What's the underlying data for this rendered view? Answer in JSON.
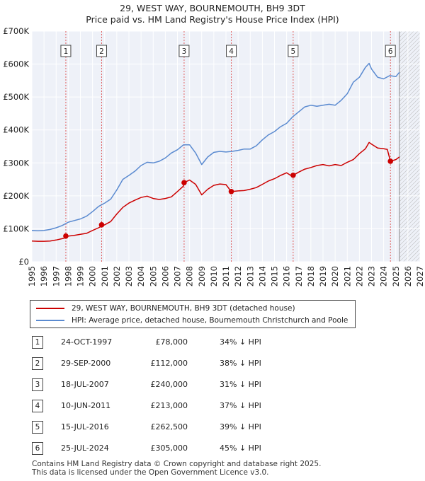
{
  "chart_data": {
    "type": "line",
    "title": "29, WEST WAY, BOURNEMOUTH, BH9 3DT",
    "subtitle": "Price paid vs. HM Land Registry's House Price Index (HPI)",
    "xlabel": "",
    "ylabel": "",
    "xlim": [
      1995,
      2027
    ],
    "ylim": [
      0,
      700000
    ],
    "grid": true,
    "x_ticks": [
      "1995",
      "1996",
      "1997",
      "1998",
      "1999",
      "2000",
      "2001",
      "2002",
      "2003",
      "2004",
      "2005",
      "2006",
      "2007",
      "2008",
      "2009",
      "2010",
      "2011",
      "2012",
      "2013",
      "2014",
      "2015",
      "2016",
      "2017",
      "2018",
      "2019",
      "2020",
      "2021",
      "2022",
      "2023",
      "2024",
      "2025",
      "2026",
      "2027"
    ],
    "y_ticks": [
      {
        "value": 0,
        "label": "£0"
      },
      {
        "value": 100000,
        "label": "£100K"
      },
      {
        "value": 200000,
        "label": "£200K"
      },
      {
        "value": 300000,
        "label": "£300K"
      },
      {
        "value": 400000,
        "label": "£400K"
      },
      {
        "value": 500000,
        "label": "£500K"
      },
      {
        "value": 600000,
        "label": "£600K"
      },
      {
        "value": 700000,
        "label": "£700K"
      }
    ],
    "future_start": 2025.3,
    "series": [
      {
        "name": "29, WEST WAY, BOURNEMOUTH, BH9 3DT (detached house)",
        "color": "#cc0000",
        "x": [
          1995.0,
          1995.5,
          1996.0,
          1996.5,
          1997.0,
          1997.5,
          1997.8,
          1998.0,
          1998.5,
          1999.0,
          1999.5,
          2000.0,
          2000.5,
          2000.75,
          2001.0,
          2001.5,
          2002.0,
          2002.5,
          2003.0,
          2003.5,
          2004.0,
          2004.5,
          2005.0,
          2005.5,
          2006.0,
          2006.5,
          2007.0,
          2007.5,
          2007.55,
          2008.0,
          2008.5,
          2009.0,
          2009.5,
          2010.0,
          2010.5,
          2011.0,
          2011.44,
          2011.5,
          2012.0,
          2012.5,
          2013.0,
          2013.5,
          2014.0,
          2014.5,
          2015.0,
          2015.5,
          2016.0,
          2016.5,
          2016.54,
          2017.0,
          2017.5,
          2018.0,
          2018.5,
          2019.0,
          2019.5,
          2020.0,
          2020.5,
          2021.0,
          2021.5,
          2022.0,
          2022.5,
          2022.8,
          2023.0,
          2023.5,
          2024.0,
          2024.3,
          2024.56,
          2025.0,
          2025.3
        ],
        "y": [
          63000,
          62000,
          62000,
          63000,
          66000,
          70000,
          73000,
          78000,
          80000,
          83000,
          86000,
          95000,
          103000,
          108000,
          112000,
          122000,
          145000,
          165000,
          178000,
          187000,
          195000,
          199000,
          192000,
          189000,
          192000,
          197000,
          213000,
          230000,
          240000,
          248000,
          235000,
          203000,
          220000,
          232000,
          236000,
          234000,
          213000,
          213000,
          215000,
          216000,
          220000,
          225000,
          235000,
          245000,
          252000,
          262000,
          270000,
          258000,
          262500,
          272000,
          281000,
          286000,
          292000,
          295000,
          291000,
          295000,
          292000,
          302000,
          310000,
          328000,
          343000,
          362000,
          357000,
          345000,
          343000,
          341000,
          305000,
          310000,
          318000
        ]
      },
      {
        "name": "HPI: Average price, detached house, Bournemouth Christchurch and Poole",
        "color": "#5a8ad0",
        "x": [
          1995.0,
          1995.5,
          1996.0,
          1996.5,
          1997.0,
          1997.5,
          1998.0,
          1998.5,
          1999.0,
          1999.5,
          2000.0,
          2000.5,
          2001.0,
          2001.5,
          2002.0,
          2002.5,
          2003.0,
          2003.5,
          2004.0,
          2004.5,
          2005.0,
          2005.5,
          2006.0,
          2006.5,
          2007.0,
          2007.5,
          2008.0,
          2008.5,
          2009.0,
          2009.5,
          2010.0,
          2010.5,
          2011.0,
          2011.5,
          2012.0,
          2012.5,
          2013.0,
          2013.5,
          2014.0,
          2014.5,
          2015.0,
          2015.5,
          2016.0,
          2016.5,
          2017.0,
          2017.5,
          2018.0,
          2018.5,
          2019.0,
          2019.5,
          2020.0,
          2020.5,
          2021.0,
          2021.5,
          2022.0,
          2022.5,
          2022.8,
          2023.0,
          2023.5,
          2024.0,
          2024.5,
          2025.0,
          2025.3
        ],
        "y": [
          95000,
          94000,
          95000,
          98000,
          103000,
          110000,
          120000,
          125000,
          130000,
          138000,
          152000,
          168000,
          178000,
          190000,
          218000,
          250000,
          262000,
          275000,
          292000,
          302000,
          300000,
          305000,
          315000,
          330000,
          340000,
          355000,
          355000,
          330000,
          295000,
          318000,
          332000,
          335000,
          333000,
          335000,
          338000,
          342000,
          342000,
          352000,
          370000,
          385000,
          395000,
          410000,
          420000,
          440000,
          455000,
          470000,
          475000,
          472000,
          475000,
          478000,
          475000,
          490000,
          510000,
          545000,
          560000,
          590000,
          602000,
          585000,
          560000,
          555000,
          565000,
          562000,
          575000
        ]
      }
    ],
    "markers": [
      {
        "label": "1",
        "x": 1997.8,
        "y": 78000
      },
      {
        "label": "2",
        "x": 2000.75,
        "y": 112000
      },
      {
        "label": "3",
        "x": 2007.55,
        "y": 240000
      },
      {
        "label": "4",
        "x": 2011.44,
        "y": 213000
      },
      {
        "label": "5",
        "x": 2016.54,
        "y": 262500
      },
      {
        "label": "6",
        "x": 2024.56,
        "y": 305000
      }
    ]
  },
  "legend": [
    {
      "label": "29, WEST WAY, BOURNEMOUTH, BH9 3DT (detached house)",
      "color": "#cc0000"
    },
    {
      "label": "HPI: Average price, detached house, Bournemouth Christchurch and Poole",
      "color": "#5a8ad0"
    }
  ],
  "table": [
    {
      "num": "1",
      "date": "24-OCT-1997",
      "price": "£78,000",
      "hpi": "34% ↓ HPI"
    },
    {
      "num": "2",
      "date": "29-SEP-2000",
      "price": "£112,000",
      "hpi": "38% ↓ HPI"
    },
    {
      "num": "3",
      "date": "18-JUL-2007",
      "price": "£240,000",
      "hpi": "31% ↓ HPI"
    },
    {
      "num": "4",
      "date": "10-JUN-2011",
      "price": "£213,000",
      "hpi": "37% ↓ HPI"
    },
    {
      "num": "5",
      "date": "15-JUL-2016",
      "price": "£262,500",
      "hpi": "39% ↓ HPI"
    },
    {
      "num": "6",
      "date": "25-JUL-2024",
      "price": "£305,000",
      "hpi": "45% ↓ HPI"
    }
  ],
  "footer": {
    "line1": "Contains HM Land Registry data © Crown copyright and database right 2025.",
    "line2": "This data is licensed under the Open Government Licence v3.0."
  }
}
